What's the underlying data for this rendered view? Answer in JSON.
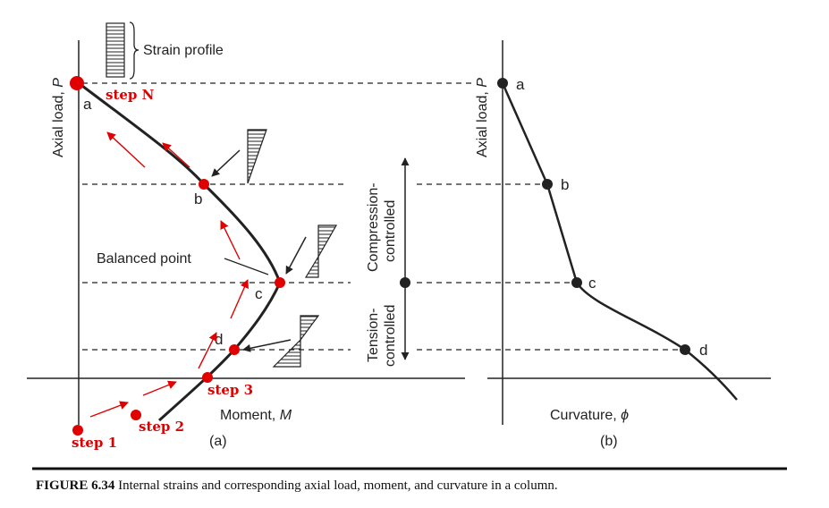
{
  "panel_a": {
    "y_axis_label": "Axial load, ",
    "y_axis_symbol": "P",
    "x_axis_label": "Moment, ",
    "x_axis_symbol": "M",
    "panel_label": "(a)",
    "strain_profile_label": "Strain profile",
    "balanced_point_label": "Balanced point",
    "points": {
      "a": "a",
      "b": "b",
      "c": "c",
      "d": "d"
    },
    "steps": {
      "n": "step N",
      "s3": "step 3",
      "s2": "step 2",
      "s1": "step 1"
    }
  },
  "middle": {
    "compression_label": [
      "Compression-",
      "controlled"
    ],
    "tension_label": [
      "Tension-",
      "controlled"
    ]
  },
  "panel_b": {
    "y_axis_label": "Axial load, ",
    "y_axis_symbol": "P",
    "x_axis_label": "Curvature, ",
    "x_axis_symbol": "ϕ",
    "panel_label": "(b)",
    "points": {
      "a": "a",
      "b": "b",
      "c": "c",
      "d": "d"
    }
  },
  "caption": {
    "number": "FIGURE 6.34",
    "text": " Internal strains and corresponding axial load, moment, and curvature in a column."
  },
  "colors": {
    "ink": "#222222",
    "highlight": "#e00000"
  }
}
